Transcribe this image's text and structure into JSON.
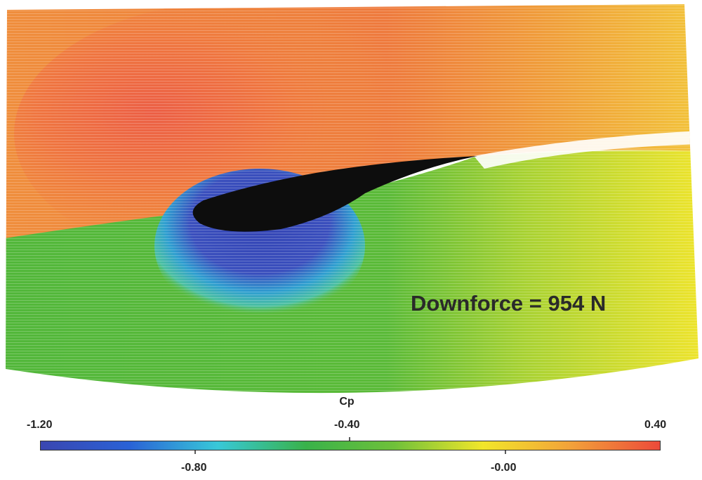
{
  "annotation": "Downforce = 954 N",
  "colorbar": {
    "title": "Cp",
    "min": -1.2,
    "max": 0.4,
    "ticks_top": [
      "-1.20",
      "-0.40",
      "0.40"
    ],
    "ticks_bottom": [
      "-0.80",
      "-0.00"
    ],
    "colors": [
      "#3a46b0",
      "#2a62d6",
      "#38c8d8",
      "#39b24a",
      "#6fc13a",
      "#f2e62a",
      "#f2a13a",
      "#ec4a3a"
    ]
  },
  "flow_colors": {
    "upper_left": "#ef8a3a",
    "upper_stagnation": "#ec5f45",
    "upper_right": "#f0c63a",
    "lower_green": "#58b938",
    "lower_yellow": "#dfe32f",
    "suction_blue": "#3446b5",
    "airfoil": "#0d0d0d"
  }
}
